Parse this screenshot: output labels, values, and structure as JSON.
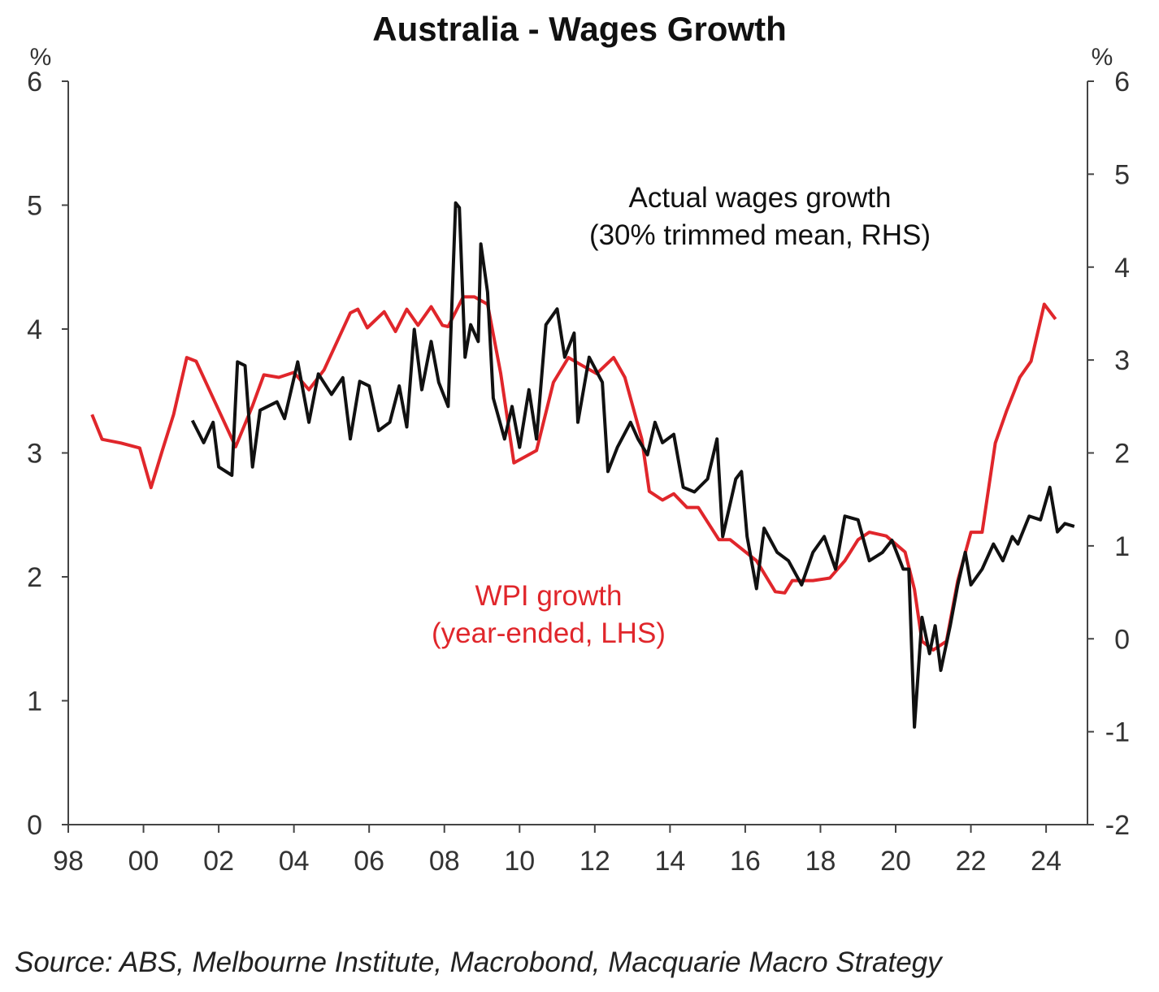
{
  "chart_data": {
    "type": "line",
    "title": "Australia - Wages Growth",
    "y_label": "%",
    "y2_label": "%",
    "source": "Source: ABS, Melbourne Institute, Macrobond, Macquarie Macro Strategy",
    "annotations": [
      {
        "lines": [
          "Actual wages growth",
          "(30% trimmed mean, RHS)"
        ],
        "color": "#111111",
        "series": 1
      },
      {
        "lines": [
          "WPI growth",
          "(year-ended, LHS)"
        ],
        "color": "#e0262b",
        "series": 0
      }
    ],
    "xlim": [
      1998,
      2025.1
    ],
    "xticks": [
      {
        "value": 1998,
        "label": "98"
      },
      {
        "value": 2000,
        "label": "00"
      },
      {
        "value": 2002,
        "label": "02"
      },
      {
        "value": 2004,
        "label": "04"
      },
      {
        "value": 2006,
        "label": "06"
      },
      {
        "value": 2008,
        "label": "08"
      },
      {
        "value": 2010,
        "label": "10"
      },
      {
        "value": 2012,
        "label": "12"
      },
      {
        "value": 2014,
        "label": "14"
      },
      {
        "value": 2016,
        "label": "16"
      },
      {
        "value": 2018,
        "label": "18"
      },
      {
        "value": 2020,
        "label": "20"
      },
      {
        "value": 2022,
        "label": "22"
      },
      {
        "value": 2024,
        "label": "24"
      }
    ],
    "ylim": [
      0,
      6
    ],
    "yticks": [
      0,
      1,
      2,
      3,
      4,
      5,
      6
    ],
    "y2lim": [
      -2,
      6
    ],
    "y2ticks": [
      -2,
      -1,
      0,
      1,
      2,
      3,
      4,
      5,
      6
    ],
    "grid": false,
    "series": [
      {
        "name": "WPI growth",
        "color": "#e0262b",
        "axis": "y",
        "x": [
          1998.63,
          1998.9,
          1999.4,
          1999.9,
          2000.2,
          2000.5,
          2000.8,
          2001.15,
          2001.4,
          2002.45,
          2002.9,
          2003.2,
          2003.6,
          2004.0,
          2004.4,
          2004.8,
          2005.5,
          2005.7,
          2005.95,
          2006.4,
          2006.7,
          2007.0,
          2007.3,
          2007.65,
          2007.95,
          2008.1,
          2008.5,
          2008.8,
          2009.15,
          2009.5,
          2009.85,
          2010.45,
          2010.9,
          2011.3,
          2011.7,
          2012.05,
          2012.5,
          2012.8,
          2013.25,
          2013.45,
          2013.8,
          2014.1,
          2014.45,
          2014.75,
          2015.3,
          2015.6,
          2016.3,
          2016.8,
          2017.05,
          2017.25,
          2017.8,
          2018.25,
          2018.65,
          2019.0,
          2019.3,
          2019.75,
          2020.25,
          2020.5,
          2020.7,
          2021.0,
          2021.35,
          2021.65,
          2022.0,
          2022.3,
          2022.65,
          2022.95,
          2023.3,
          2023.6,
          2023.95,
          2024.25
        ],
        "values": [
          3.31,
          3.11,
          3.08,
          3.04,
          2.72,
          3.02,
          3.31,
          3.77,
          3.74,
          3.05,
          3.38,
          3.63,
          3.61,
          3.65,
          3.51,
          3.67,
          4.13,
          4.16,
          4.01,
          4.14,
          3.98,
          4.16,
          4.03,
          4.18,
          4.03,
          4.02,
          4.26,
          4.26,
          4.2,
          3.64,
          2.92,
          3.02,
          3.57,
          3.77,
          3.7,
          3.64,
          3.77,
          3.61,
          3.11,
          2.69,
          2.62,
          2.67,
          2.56,
          2.56,
          2.3,
          2.3,
          2.13,
          1.88,
          1.87,
          1.97,
          1.97,
          1.99,
          2.13,
          2.3,
          2.36,
          2.33,
          2.2,
          1.9,
          1.48,
          1.41,
          1.48,
          1.97,
          2.36,
          2.36,
          3.08,
          3.34,
          3.61,
          3.74,
          4.2,
          4.08
        ]
      },
      {
        "name": "Actual wages growth",
        "color": "#111111",
        "axis": "y2",
        "x": [
          2001.3,
          2001.6,
          2001.85,
          2002.0,
          2002.35,
          2002.5,
          2002.7,
          2002.9,
          2003.1,
          2003.55,
          2003.75,
          2004.1,
          2004.4,
          2004.65,
          2005.0,
          2005.3,
          2005.5,
          2005.75,
          2006.0,
          2006.25,
          2006.55,
          2006.8,
          2007.0,
          2007.2,
          2007.4,
          2007.65,
          2007.85,
          2008.1,
          2008.3,
          2008.4,
          2008.55,
          2008.7,
          2008.9,
          2008.97,
          2009.15,
          2009.3,
          2009.6,
          2009.8,
          2010.0,
          2010.25,
          2010.45,
          2010.7,
          2011.0,
          2011.2,
          2011.45,
          2011.55,
          2011.85,
          2012.2,
          2012.35,
          2012.6,
          2012.95,
          2013.15,
          2013.4,
          2013.6,
          2013.8,
          2014.1,
          2014.35,
          2014.65,
          2015.0,
          2015.25,
          2015.4,
          2015.75,
          2015.9,
          2016.05,
          2016.3,
          2016.5,
          2016.85,
          2017.15,
          2017.5,
          2017.8,
          2018.1,
          2018.4,
          2018.65,
          2019.0,
          2019.3,
          2019.65,
          2019.9,
          2020.2,
          2020.35,
          2020.5,
          2020.7,
          2020.9,
          2021.05,
          2021.2,
          2021.45,
          2021.65,
          2021.85,
          2022.0,
          2022.3,
          2022.6,
          2022.85,
          2023.1,
          2023.25,
          2023.55,
          2023.85,
          2024.1,
          2024.3,
          2024.5,
          2024.75
        ],
        "values": [
          2.35,
          2.11,
          2.33,
          1.85,
          1.76,
          2.98,
          2.94,
          1.85,
          2.46,
          2.55,
          2.37,
          2.98,
          2.33,
          2.85,
          2.63,
          2.81,
          2.15,
          2.77,
          2.72,
          2.24,
          2.33,
          2.72,
          2.28,
          3.33,
          2.68,
          3.2,
          2.76,
          2.5,
          4.69,
          4.64,
          3.03,
          3.38,
          3.2,
          4.25,
          3.73,
          2.59,
          2.15,
          2.5,
          2.06,
          2.68,
          2.15,
          3.38,
          3.55,
          3.03,
          3.29,
          2.33,
          3.03,
          2.76,
          1.8,
          2.06,
          2.33,
          2.15,
          1.98,
          2.33,
          2.11,
          2.2,
          1.63,
          1.58,
          1.72,
          2.15,
          1.1,
          1.72,
          1.8,
          1.1,
          0.54,
          1.19,
          0.93,
          0.84,
          0.58,
          0.93,
          1.1,
          0.75,
          1.32,
          1.28,
          0.84,
          0.93,
          1.06,
          0.75,
          0.75,
          -0.95,
          0.23,
          -0.16,
          0.14,
          -0.34,
          0.14,
          0.58,
          0.93,
          0.58,
          0.75,
          1.02,
          0.84,
          1.1,
          1.02,
          1.32,
          1.28,
          1.63,
          1.15,
          1.24,
          1.21
        ]
      }
    ]
  }
}
